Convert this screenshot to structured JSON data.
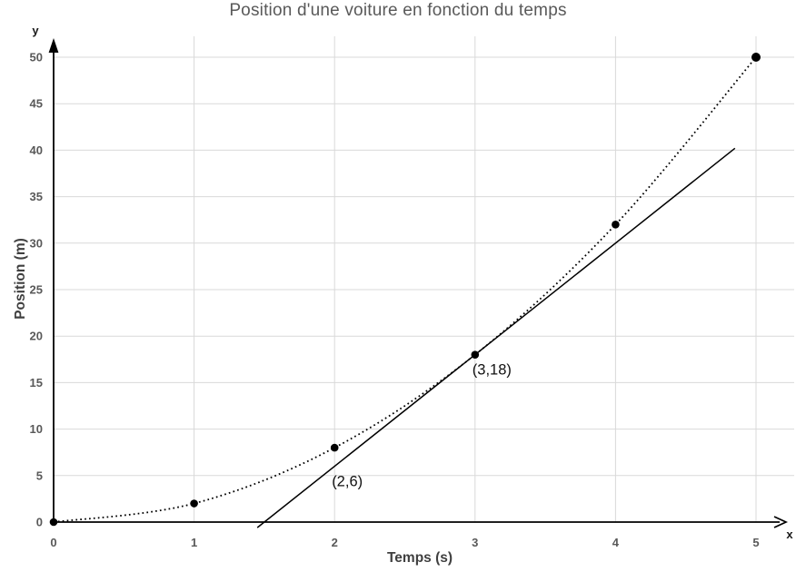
{
  "chart_data": {
    "type": "line",
    "title": "Position d'une voiture en fonction du temps",
    "xlabel": "Temps (s)",
    "ylabel": "Position (m)",
    "axis_letters": {
      "x": "x",
      "y": "y"
    },
    "x_ticks": [
      0,
      1,
      2,
      3,
      4,
      5
    ],
    "y_ticks": [
      0,
      5,
      10,
      15,
      20,
      25,
      30,
      35,
      40,
      45,
      50
    ],
    "xlim": [
      0,
      5.2
    ],
    "ylim": [
      0,
      52
    ],
    "grid": "on",
    "legend": "none",
    "series": [
      {
        "name": "position-curve",
        "style": "dotted",
        "smooth": true,
        "markers": true,
        "points": [
          [
            0,
            0
          ],
          [
            1,
            2
          ],
          [
            2,
            8
          ],
          [
            3,
            18
          ],
          [
            4,
            32
          ],
          [
            5,
            50
          ]
        ]
      },
      {
        "name": "tangent-line",
        "style": "solid",
        "smooth": false,
        "markers": false,
        "points": [
          [
            1.45,
            -0.6
          ],
          [
            4.85,
            40.2
          ]
        ]
      }
    ],
    "annotations": [
      {
        "text": "(2,6)",
        "x": 2,
        "y": 6
      },
      {
        "text": "(3,18)",
        "x": 3,
        "y": 18
      }
    ],
    "colors": {
      "line": "#000000",
      "grid": "#d9d9d9",
      "title": "#595959",
      "tick": "#595959",
      "axis_label": "#404040",
      "axis": "#000000",
      "annotation": "#111111"
    }
  }
}
